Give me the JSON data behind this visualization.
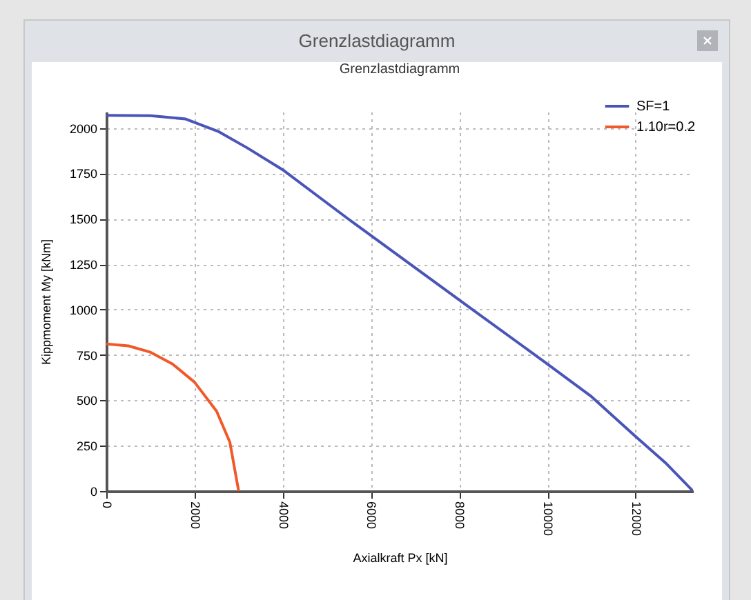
{
  "chart_data": {
    "type": "line",
    "title": "Grenzlastdiagramm",
    "subtitle": "Grenzlastdiagramm",
    "xlabel": "Axialkraft Px [kN]",
    "ylabel": "Kippmoment My [kNm]",
    "series": [
      {
        "name": "SF=1",
        "color": "#4a55b8",
        "x": [
          0,
          1000,
          1800,
          2550,
          3200,
          4000,
          5480,
          8300,
          10000,
          11000,
          12000,
          12700,
          13300
        ],
        "values": [
          2070,
          2068,
          2050,
          1980,
          1890,
          1770,
          1500,
          1000,
          700,
          520,
          300,
          150,
          0
        ]
      },
      {
        "name": "1.10r=0.2",
        "color": "#f05a2a",
        "x": [
          0,
          500,
          1000,
          1500,
          2000,
          2500,
          2800,
          3000
        ],
        "values": [
          810,
          800,
          765,
          700,
          600,
          440,
          270,
          0
        ]
      }
    ],
    "xlim": [
      0,
      13300
    ],
    "ylim": [
      0,
      2090
    ],
    "xticks": [
      0,
      2000,
      4000,
      6000,
      8000,
      10000,
      12000
    ],
    "yticks": [
      0,
      250,
      500,
      750,
      1000,
      1250,
      1500,
      1750,
      2000
    ],
    "grid": true,
    "legend": "top right",
    "marker": "none",
    "line_style": "solid"
  }
}
